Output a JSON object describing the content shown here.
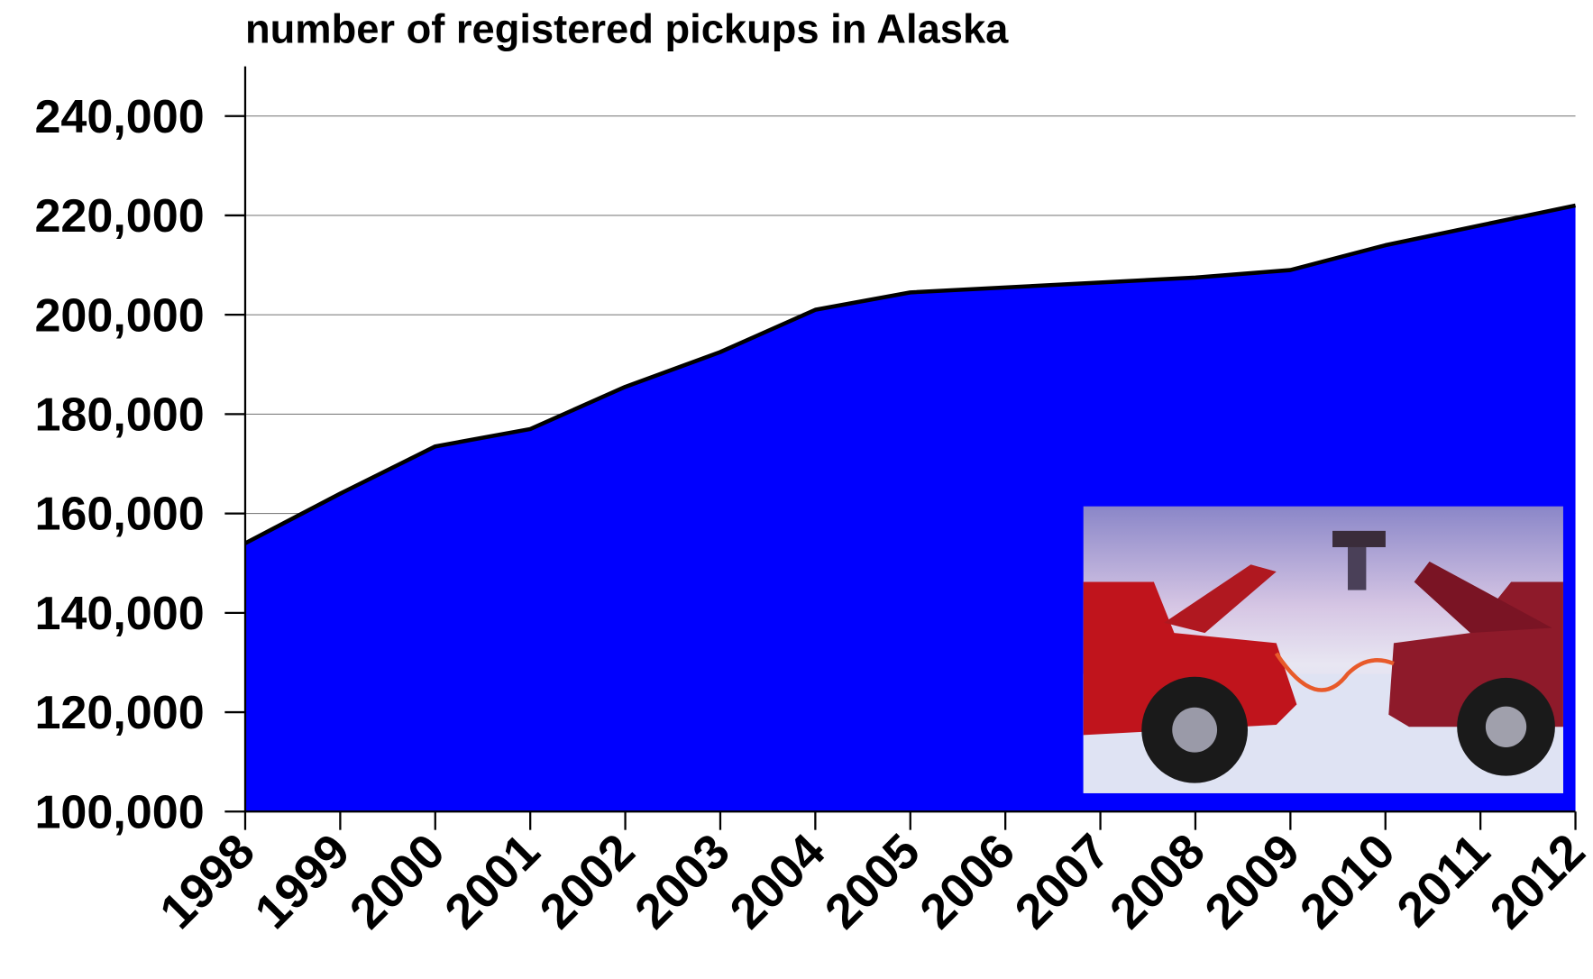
{
  "chart_data": {
    "type": "area",
    "title": "number of registered pickups in Alaska",
    "categories": [
      "1998",
      "1999",
      "2000",
      "2001",
      "2002",
      "2003",
      "2004",
      "2005",
      "2006",
      "2007",
      "2008",
      "2009",
      "2010",
      "2011",
      "2012"
    ],
    "values": [
      154000,
      164000,
      173500,
      177000,
      185500,
      192500,
      201000,
      204500,
      205500,
      206500,
      207500,
      209000,
      214000,
      218000,
      222000
    ],
    "color": "#0000ff",
    "ylim": [
      100000,
      250000
    ],
    "yticks": [
      {
        "value": 100000,
        "label": "100,000"
      },
      {
        "value": 120000,
        "label": "120,000"
      },
      {
        "value": 140000,
        "label": "140,000"
      },
      {
        "value": 160000,
        "label": "160,000"
      },
      {
        "value": 180000,
        "label": "180,000"
      },
      {
        "value": 200000,
        "label": "200,000"
      },
      {
        "value": 220000,
        "label": "220,000"
      },
      {
        "value": 240000,
        "label": "240,000"
      }
    ],
    "grid": true
  }
}
